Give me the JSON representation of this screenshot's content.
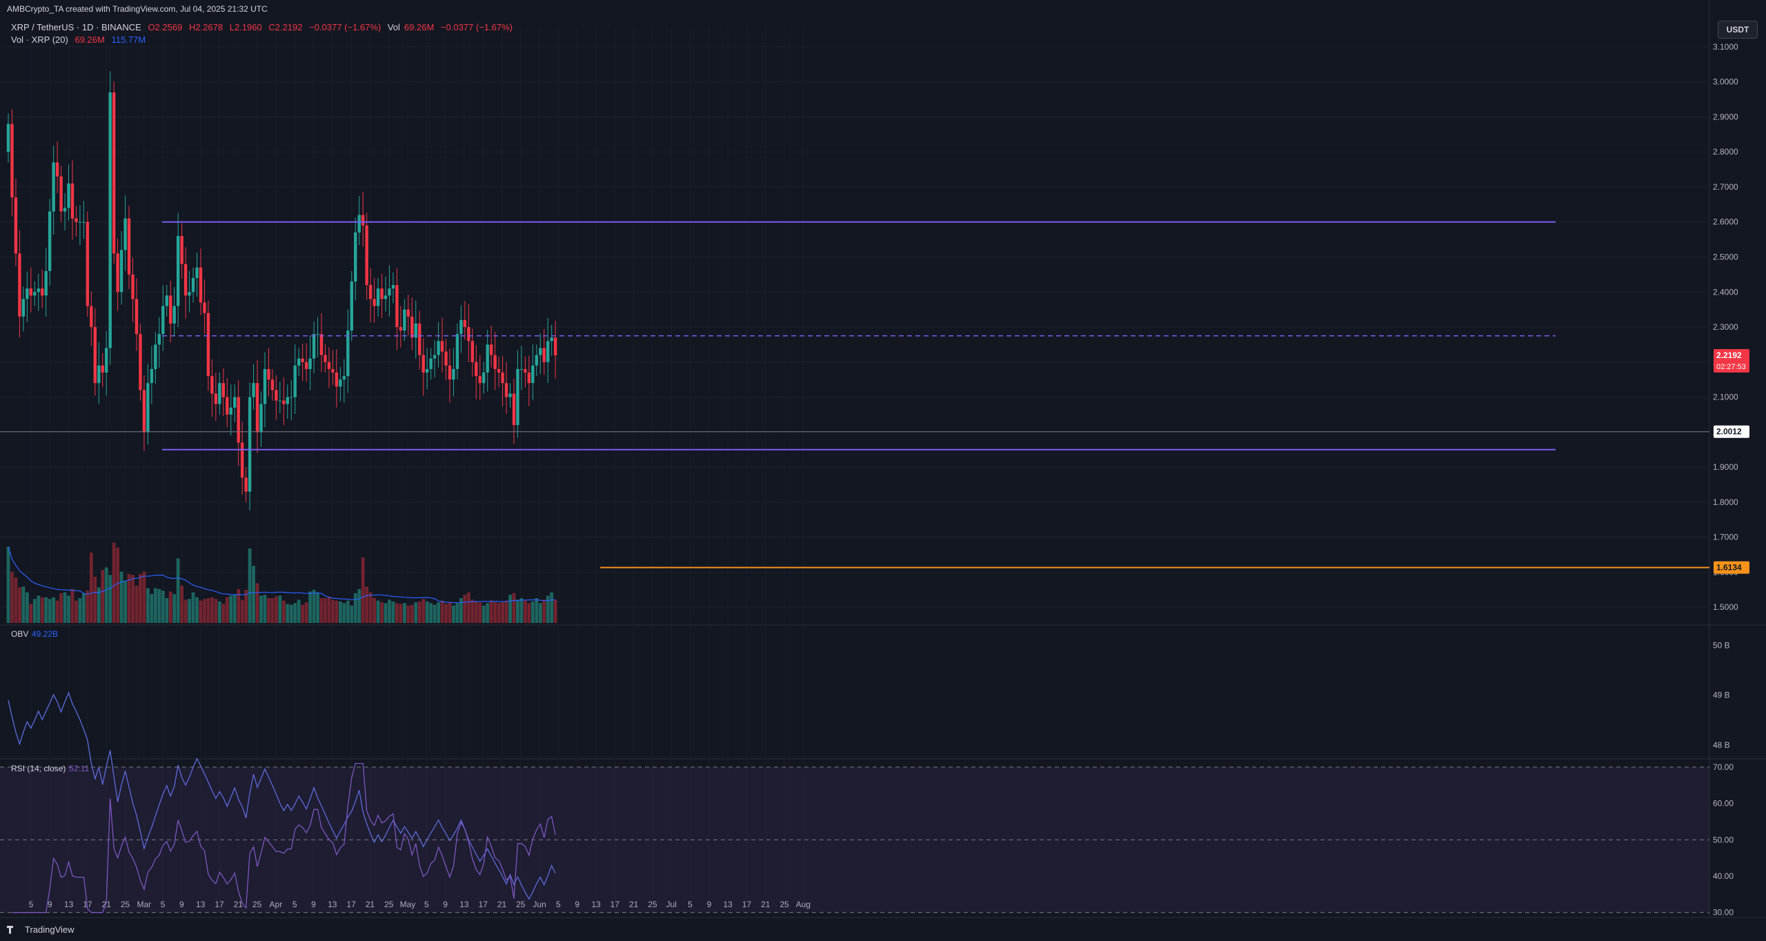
{
  "header": {
    "attribution": "AMBCrypto_TA created with TradingView.com, Jul 04, 2025 21:32 UTC"
  },
  "symbol_line": {
    "symbol": "XRP / TetherUS · 1D · BINANCE",
    "open": "O2.2569",
    "high": "H2.2678",
    "low": "L2.1960",
    "close": "C2.2192",
    "change": "−0.0377 (−1.67%)",
    "vol_label": "Vol",
    "vol_value": "69.26M",
    "vol_change": "−0.0377 (−1.67%)"
  },
  "volume_line": {
    "label": "Vol · XRP (20)",
    "value": "69.26M",
    "ma": "115.77M"
  },
  "currency_button": "USDT",
  "footer": {
    "brand": "TradingView"
  },
  "colors": {
    "up": "#26a69a",
    "down": "#f23645",
    "range": "#7b5cf6",
    "support": "#f7931a",
    "obv": "#5b6ee1",
    "rsi": "#7e57c2"
  },
  "chart_data": [
    {
      "type": "candlestick",
      "title": "XRP / TetherUS · 1D · BINANCE",
      "ylim": [
        1.455,
        3.155
      ],
      "yticks": [
        "1.5000",
        "1.6000",
        "1.7000",
        "1.8000",
        "1.9000",
        "2.0000",
        "2.1000",
        "2.2000",
        "2.3000",
        "2.4000",
        "2.5000",
        "2.6000",
        "2.7000",
        "2.8000",
        "2.9000",
        "3.0000",
        "3.1000"
      ],
      "xticks": [
        "5",
        "9",
        "13",
        "17",
        "21",
        "25",
        "Mar",
        "5",
        "9",
        "13",
        "17",
        "21",
        "25",
        "Apr",
        "5",
        "9",
        "13",
        "17",
        "21",
        "25",
        "May",
        "5",
        "9",
        "13",
        "17",
        "21",
        "25",
        "Jun",
        "5",
        "9",
        "13",
        "17",
        "21",
        "25",
        "Jul",
        "5",
        "9",
        "13",
        "17",
        "21",
        "25",
        "Aug"
      ],
      "start_date": "2025-02-01",
      "closes": [
        2.88,
        2.67,
        2.51,
        2.33,
        2.38,
        2.41,
        2.39,
        2.4,
        2.41,
        2.39,
        2.46,
        2.63,
        2.77,
        2.73,
        2.63,
        2.64,
        2.71,
        2.61,
        2.6,
        2.6,
        2.6,
        2.36,
        2.3,
        2.14,
        2.19,
        2.17,
        2.24,
        2.97,
        2.51,
        2.4,
        2.52,
        2.61,
        2.45,
        2.38,
        2.28,
        2.12,
        2.0,
        2.14,
        2.18,
        2.25,
        2.28,
        2.36,
        2.39,
        2.31,
        2.36,
        2.56,
        2.48,
        2.39,
        2.4,
        2.44,
        2.47,
        2.37,
        2.34,
        2.16,
        2.11,
        2.08,
        2.14,
        2.1,
        2.05,
        2.07,
        2.1,
        1.97,
        1.87,
        1.83,
        2.1,
        2.14,
        2.0,
        2.08,
        2.18,
        2.15,
        2.12,
        2.09,
        2.09,
        2.08,
        2.1,
        2.1,
        2.19,
        2.21,
        2.2,
        2.18,
        2.21,
        2.28,
        2.28,
        2.22,
        2.2,
        2.18,
        2.17,
        2.13,
        2.15,
        2.16,
        2.29,
        2.43,
        2.57,
        2.62,
        2.59,
        2.42,
        2.38,
        2.36,
        2.41,
        2.38,
        2.39,
        2.41,
        2.42,
        2.3,
        2.29,
        2.35,
        2.33,
        2.27,
        2.31,
        2.22,
        2.17,
        2.18,
        2.21,
        2.22,
        2.26,
        2.23,
        2.19,
        2.15,
        2.18,
        2.28,
        2.32,
        2.3,
        2.26,
        2.2,
        2.16,
        2.14,
        2.17,
        2.25,
        2.22,
        2.18,
        2.17,
        2.14,
        2.1,
        2.11,
        2.02,
        2.18,
        2.18,
        2.17,
        2.14,
        2.19,
        2.22,
        2.24,
        2.2,
        2.26,
        2.27,
        2.2192
      ],
      "support_resistance": {
        "range_high": 2.6,
        "range_mid": 2.275,
        "range_low": 1.95,
        "support": 1.6134,
        "marked_level": 2.0012
      },
      "price_labels": [
        {
          "value": "2.2192",
          "countdown": "02:27:53"
        },
        {
          "value": "2.0012"
        },
        {
          "value": "1.6134"
        }
      ]
    },
    {
      "type": "bar",
      "title": "Vol · XRP (20)",
      "note": "volume bars with 20-period MA, plotted at bottom of price pane",
      "relative_values": [
        0.92,
        0.62,
        0.55,
        0.43,
        0.44,
        0.37,
        0.23,
        0.29,
        0.33,
        0.31,
        0.31,
        0.29,
        0.31,
        0.27,
        0.36,
        0.37,
        0.33,
        0.41,
        0.27,
        0.3,
        0.36,
        0.39,
        0.85,
        0.56,
        0.43,
        0.64,
        0.67,
        0.58,
        0.97,
        0.91,
        0.62,
        0.51,
        0.59,
        0.58,
        0.45,
        0.59,
        0.62,
        0.42,
        0.35,
        0.42,
        0.41,
        0.39,
        0.3,
        0.38,
        0.35,
        0.78,
        0.45,
        0.28,
        0.29,
        0.37,
        0.31,
        0.27,
        0.29,
        0.3,
        0.31,
        0.29,
        0.26,
        0.23,
        0.31,
        0.33,
        0.34,
        0.41,
        0.28,
        0.4,
        0.9,
        0.69,
        0.48,
        0.33,
        0.34,
        0.3,
        0.3,
        0.32,
        0.33,
        0.27,
        0.23,
        0.22,
        0.24,
        0.28,
        0.22,
        0.25,
        0.38,
        0.4,
        0.37,
        0.3,
        0.3,
        0.32,
        0.28,
        0.27,
        0.26,
        0.24,
        0.27,
        0.21,
        0.36,
        0.41,
        0.79,
        0.44,
        0.37,
        0.3,
        0.27,
        0.25,
        0.24,
        0.28,
        0.26,
        0.24,
        0.23,
        0.24,
        0.21,
        0.22,
        0.25,
        0.26,
        0.29,
        0.26,
        0.24,
        0.22,
        0.25,
        0.27,
        0.23,
        0.25,
        0.21,
        0.24,
        0.3,
        0.34,
        0.37,
        0.28,
        0.26,
        0.25,
        0.21,
        0.24,
        0.27,
        0.25,
        0.24,
        0.25,
        0.27,
        0.34,
        0.36,
        0.28,
        0.3,
        0.27,
        0.24,
        0.26,
        0.3,
        0.24,
        0.28,
        0.33,
        0.37,
        0.28
      ]
    },
    {
      "type": "line",
      "title": "OBV",
      "value_label": "49.22B",
      "ylim": [
        47.75,
        50.35
      ],
      "yticks": [
        "48 B",
        "49 B",
        "50 B"
      ]
    },
    {
      "type": "line",
      "title": "RSI (14, close)",
      "value_label": "52.11",
      "ylim": [
        29,
        71.5
      ],
      "yticks": [
        "30.00",
        "40.00",
        "50.00",
        "60.00",
        "70.00"
      ],
      "bands": [
        30,
        50,
        70
      ]
    }
  ]
}
